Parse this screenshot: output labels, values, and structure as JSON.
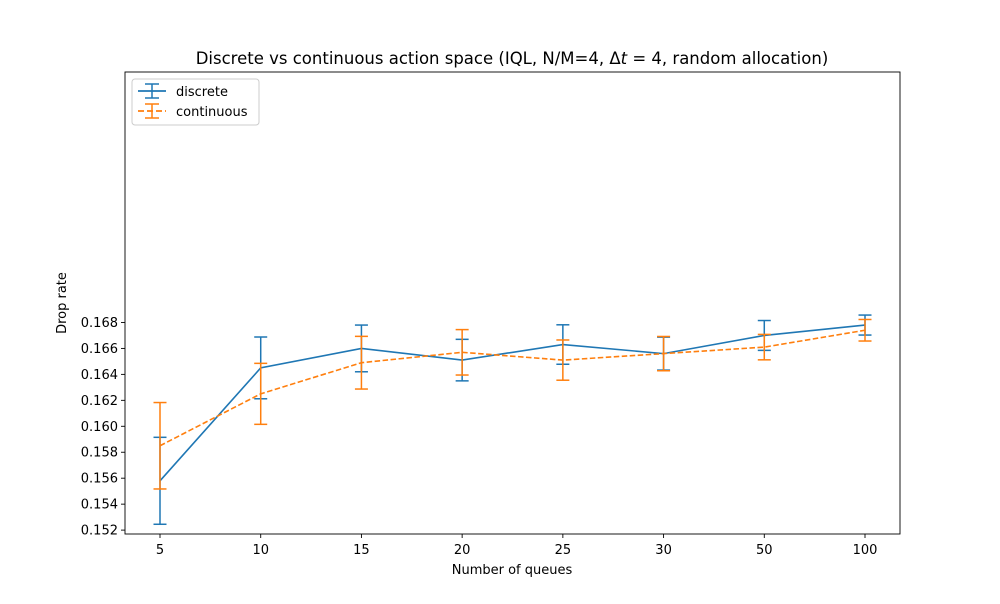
{
  "chart_data": {
    "type": "line",
    "title": "Discrete vs continuous action space (IQL, N/M=4, Δt = 4, random allocation)",
    "title_parts": {
      "before": "Discrete vs continuous action space (IQL, N/M=4, ",
      "delta": "Δ",
      "t": "t",
      "after": " = 4, random allocation)"
    },
    "xlabel": "Number of queues",
    "ylabel": "Drop rate",
    "categories": [
      "5",
      "10",
      "15",
      "20",
      "25",
      "30",
      "50",
      "100"
    ],
    "ylim": [
      0.1517,
      0.1873
    ],
    "yticks": [
      "0.152",
      "0.154",
      "0.156",
      "0.158",
      "0.160",
      "0.162",
      "0.164",
      "0.166",
      "0.168"
    ],
    "ytick_values": [
      0.152,
      0.154,
      0.156,
      0.158,
      0.16,
      0.162,
      0.164,
      0.166,
      0.168
    ],
    "legend_position": "top-left",
    "grid": false,
    "series": [
      {
        "name": "discrete",
        "color": "#1f77b4",
        "line_style": "solid",
        "values": [
          0.1558,
          0.1645,
          0.166,
          0.1651,
          0.1663,
          0.1656,
          0.167,
          0.1678
        ],
        "errors": [
          0.00335,
          0.00238,
          0.0018,
          0.0016,
          0.00152,
          0.00127,
          0.00115,
          0.00077
        ]
      },
      {
        "name": "continuous",
        "color": "#ff7f0e",
        "line_style": "dashed",
        "values": [
          0.1585,
          0.1625,
          0.1649,
          0.1657,
          0.1651,
          0.1656,
          0.1661,
          0.1674
        ],
        "errors": [
          0.00333,
          0.00235,
          0.00203,
          0.00175,
          0.00155,
          0.00132,
          0.00098,
          0.00083
        ]
      }
    ]
  }
}
